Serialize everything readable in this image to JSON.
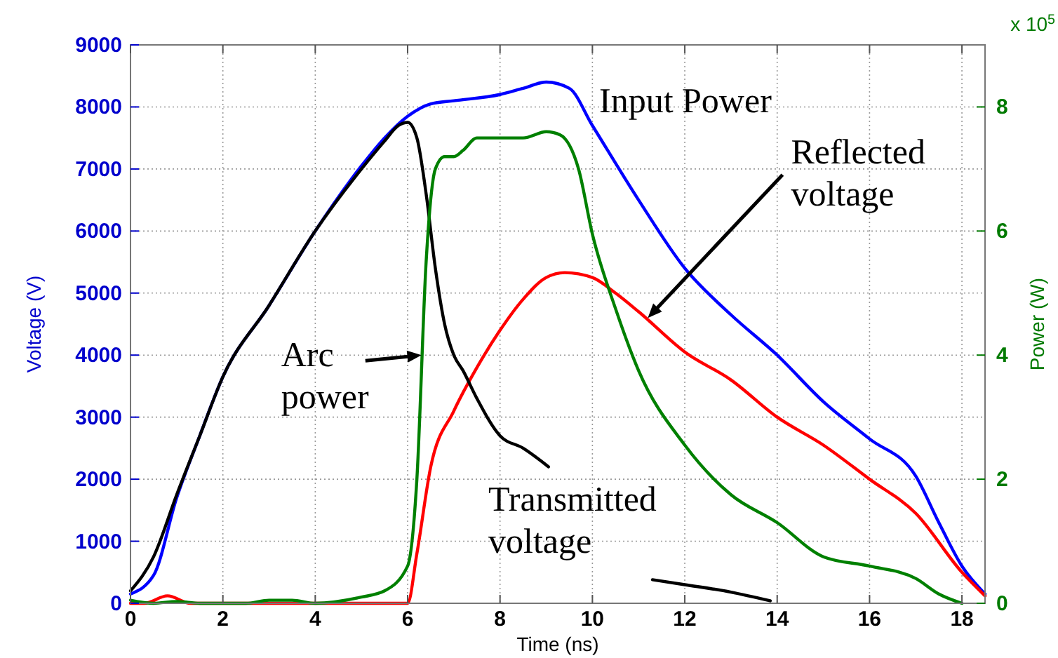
{
  "chart_data": {
    "type": "line",
    "xlabel": "Time (ns)",
    "ylabel": "Voltage (V)",
    "y2label": "Power (W)",
    "xlim": [
      0,
      18.5
    ],
    "xticks": [
      0,
      2,
      4,
      6,
      8,
      10,
      12,
      14,
      16,
      18
    ],
    "ylim": [
      0,
      9000
    ],
    "yticks": [
      0,
      1000,
      2000,
      3000,
      4000,
      5000,
      6000,
      7000,
      8000,
      9000
    ],
    "y2lim": [
      0,
      9
    ],
    "y2ticks": [
      0,
      2,
      4,
      6,
      8
    ],
    "grid": true,
    "marker": "none",
    "line_style": "solid",
    "annotations": [
      "Input Power",
      {
        "text": "Reflected voltage",
        "x": 11.2,
        "y": 4600
      },
      {
        "text": "Arc power",
        "x": 6.3,
        "y": 4000
      },
      "Transmitted voltage",
      "x 10$^{5}$"
    ],
    "series": [
      {
        "color": "#0000ff",
        "x": [
          0,
          0.5,
          1,
          1.5,
          2,
          3,
          4,
          5,
          5.5,
          6,
          6.5,
          7,
          8,
          8.5,
          9,
          9.5,
          10,
          11,
          12,
          13,
          14,
          15,
          16,
          17,
          17.5,
          18,
          18.5
        ],
        "values": [
          150,
          450,
          1700,
          2700,
          3650,
          4800,
          6000,
          7050,
          7500,
          7850,
          8050,
          8100,
          8200,
          8300,
          8400,
          8300,
          7700,
          6500,
          5400,
          4650,
          4000,
          3250,
          2650,
          2050,
          1300,
          600,
          150
        ]
      },
      {
        "color": "#ff0000",
        "x": [
          0,
          0.3,
          0.8,
          1.3,
          2,
          3,
          4,
          5,
          6,
          6.2,
          6.5,
          7,
          7.5,
          8,
          8.5,
          9,
          9.4,
          10,
          10.5,
          11,
          12,
          13,
          14,
          15,
          16,
          17,
          18,
          18.5
        ],
        "values": [
          0,
          0,
          120,
          0,
          0,
          0,
          0,
          0,
          0,
          800,
          2200,
          3100,
          3800,
          4400,
          4900,
          5250,
          5330,
          5250,
          5000,
          4700,
          4050,
          3600,
          3000,
          2550,
          2000,
          1450,
          500,
          120
        ]
      },
      {
        "color": "#000000",
        "x": [
          0,
          0.5,
          1,
          1.5,
          2,
          3,
          4,
          5,
          5.5,
          5.8,
          6,
          6.2,
          6.4,
          6.6,
          6.8,
          7,
          7.2,
          7.5,
          8,
          8.5,
          9.05,
          10,
          11.3,
          12,
          13,
          13.85
        ],
        "values": [
          200,
          750,
          1750,
          2700,
          3650,
          4800,
          6000,
          7000,
          7450,
          7700,
          7750,
          7500,
          6600,
          5400,
          4500,
          4000,
          3750,
          3300,
          2700,
          2500,
          2200,
          null,
          380,
          300,
          180,
          40
        ]
      },
      {
        "color": "#008000",
        "axis": "y2",
        "x": [
          0,
          0.5,
          1,
          1.5,
          2,
          2.5,
          3,
          3.5,
          4,
          5,
          5.5,
          6,
          6.2,
          6.4,
          6.6,
          6.8,
          7,
          7.2,
          7.5,
          8,
          8.5,
          9,
          9.3,
          9.7,
          10,
          10.5,
          11,
          12,
          13,
          14,
          15,
          16,
          17,
          17.5,
          18
        ],
        "values": [
          0.05,
          0,
          0.03,
          0,
          0,
          0,
          0.05,
          0.05,
          0,
          0.1,
          0.2,
          0.6,
          2,
          5.5,
          7,
          7.2,
          7.2,
          7.3,
          7.5,
          7.5,
          7.5,
          7.6,
          7.55,
          7,
          5.95,
          4.75,
          3.75,
          2.55,
          1.75,
          1.3,
          0.75,
          0.6,
          0.4,
          0.15,
          0
        ]
      }
    ]
  }
}
